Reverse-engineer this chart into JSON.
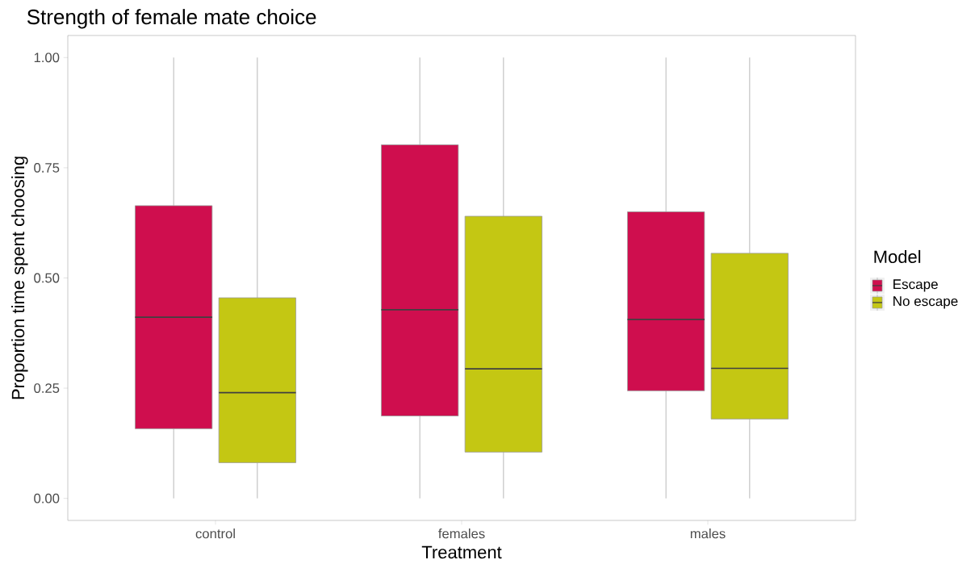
{
  "chart_data": {
    "type": "box",
    "title": "Strength of female mate choice",
    "xlabel": "Treatment",
    "ylabel": "Proportion time spent choosing",
    "legend_title": "Model",
    "categories": [
      "control",
      "females",
      "males"
    ],
    "series": [
      {
        "name": "Escape",
        "color": "#cf0e4e",
        "boxes": [
          {
            "low": 0,
            "q1": 0.158,
            "median": 0.411,
            "q3": 0.664,
            "high": 1
          },
          {
            "low": 0,
            "q1": 0.187,
            "median": 0.428,
            "q3": 0.802,
            "high": 1
          },
          {
            "low": 0,
            "q1": 0.244,
            "median": 0.406,
            "q3": 0.65,
            "high": 1
          }
        ]
      },
      {
        "name": "No escape",
        "color": "#c4c713",
        "boxes": [
          {
            "low": 0,
            "q1": 0.081,
            "median": 0.24,
            "q3": 0.455,
            "high": 1
          },
          {
            "low": 0,
            "q1": 0.105,
            "median": 0.294,
            "q3": 0.64,
            "high": 1
          },
          {
            "low": 0,
            "q1": 0.18,
            "median": 0.295,
            "q3": 0.556,
            "high": 1
          }
        ]
      }
    ],
    "ylim": [
      -0.05,
      1.05
    ],
    "yticks": [
      {
        "value": 0,
        "label": "0.00"
      },
      {
        "value": 0.25,
        "label": "0.25"
      },
      {
        "value": 0.5,
        "label": "0.50"
      },
      {
        "value": 0.75,
        "label": "0.75"
      },
      {
        "value": 1,
        "label": "1.00"
      }
    ],
    "grid": false,
    "legend": "right"
  }
}
